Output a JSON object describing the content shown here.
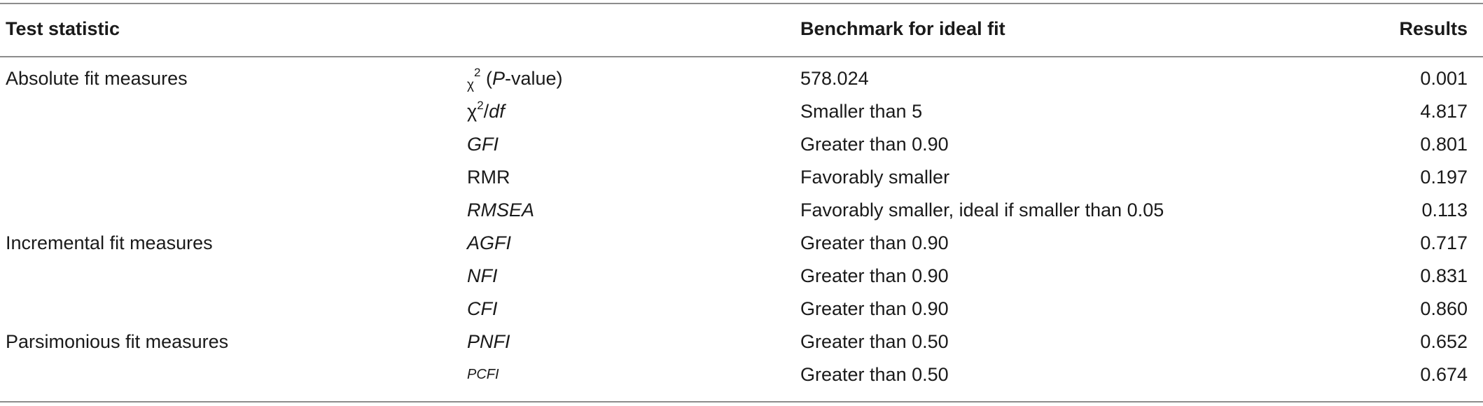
{
  "header": {
    "test_statistic": "Test statistic",
    "benchmark": "Benchmark for ideal fit",
    "results": "Results"
  },
  "rows": [
    {
      "group": "Absolute fit measures",
      "measure_prefix": "χ",
      "measure_sup": "2",
      "measure_mid": "(",
      "measure_italic": "P",
      "measure_suffix": "-value)",
      "benchmark": "578.024",
      "result": "0.001"
    },
    {
      "group": "",
      "measure_prefix": "χ",
      "measure_sup": "2",
      "measure_mid": "/",
      "measure_italic": "df",
      "benchmark": "Smaller than 5",
      "result": "4.817"
    },
    {
      "group": "",
      "measure_italic": "GFI",
      "benchmark": "Greater than 0.90",
      "result": "0.801"
    },
    {
      "group": "",
      "measure": "RMR",
      "benchmark": "Favorably smaller",
      "result": "0.197"
    },
    {
      "group": "",
      "measure_italic": "RMSEA",
      "benchmark": "Favorably smaller, ideal if smaller than 0.05",
      "result": "0.113"
    },
    {
      "group": "Incremental fit measures",
      "measure_italic": "AGFI",
      "benchmark": "Greater than 0.90",
      "result": "0.717"
    },
    {
      "group": "",
      "measure_italic": "NFI",
      "benchmark": "Greater than 0.90",
      "result": "0.831"
    },
    {
      "group": "",
      "measure_italic": "CFI",
      "benchmark": "Greater than 0.90",
      "result": "0.860"
    },
    {
      "group": "Parsimonious fit measures",
      "measure_italic": "PNFI",
      "benchmark": "Greater than 0.50",
      "result": "0.652"
    },
    {
      "group": "",
      "measure_italic": "PCFI",
      "benchmark": "Greater than 0.50",
      "result": "0.674"
    }
  ]
}
